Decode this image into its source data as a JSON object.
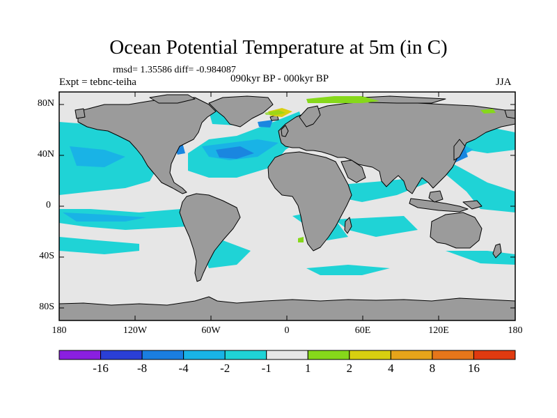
{
  "title": "Ocean Potential Temperature at 5m (in C)",
  "stats": "rmsd= 1.35586  diff= -0.984087",
  "label_left": "Expt = tebnc-teiha",
  "label_center": "090kyr BP - 000kyr BP",
  "label_right": "JJA",
  "lat_ticks": [
    "80N",
    "40N",
    "0",
    "40S",
    "80S"
  ],
  "lon_ticks": [
    "180",
    "120W",
    "60W",
    "0",
    "60E",
    "120E",
    "180"
  ],
  "colors": {
    "land": "#9b9b9b",
    "neutral": "#e6e6e6",
    "cool_1": "#1fd3d6",
    "cool_2": "#19b3e6",
    "cool_3": "#1a86e0",
    "cool_4": "#1f3fd6",
    "cool_5": "#8a1fe0",
    "warm_1": "#86d81a",
    "warm_2": "#d8cf10",
    "warm_3": "#e6a41a",
    "warm_4": "#e6761a",
    "warm_5": "#e03a10"
  },
  "colorbar": {
    "boxes": [
      "#8a1fe0",
      "#2a3fd6",
      "#1a7ee0",
      "#19b3e6",
      "#1fd3d6",
      "#e6e6e6",
      "#86d81a",
      "#d8cf10",
      "#e6a41a",
      "#e6761a",
      "#e03a10"
    ],
    "labels": [
      "-16",
      "-8",
      "-4",
      "-2",
      "-1",
      "1",
      "2",
      "4",
      "8",
      "16"
    ]
  }
}
